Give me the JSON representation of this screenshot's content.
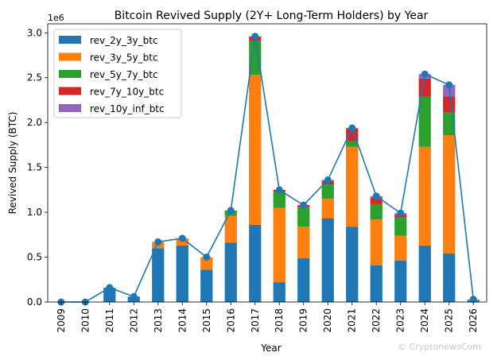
{
  "chart_data": {
    "type": "bar",
    "stacked": true,
    "title": "Bitcoin Revived Supply (2Y+ Long-Term Holders) by Year",
    "xlabel": "Year",
    "ylabel": "Revived Supply (BTC)",
    "y_offset_label": "1e6",
    "ylim": [
      0,
      3100000
    ],
    "yticks": [
      0,
      500000,
      1000000,
      1500000,
      2000000,
      2500000,
      3000000
    ],
    "ytick_labels": [
      "0.0",
      "0.5",
      "1.0",
      "1.5",
      "2.0",
      "2.5",
      "3.0"
    ],
    "grid": false,
    "legend_position": "top-left",
    "categories": [
      "2009",
      "2010",
      "2011",
      "2012",
      "2013",
      "2014",
      "2015",
      "2016",
      "2017",
      "2018",
      "2019",
      "2020",
      "2021",
      "2022",
      "2023",
      "2024",
      "2025",
      "2026"
    ],
    "series": [
      {
        "name": "rev_2y_3y_btc",
        "color": "#1f77b4",
        "values": [
          0,
          0,
          160000,
          60000,
          600000,
          630000,
          360000,
          660000,
          860000,
          220000,
          490000,
          930000,
          840000,
          410000,
          460000,
          630000,
          540000,
          20000
        ]
      },
      {
        "name": "rev_3y_5y_btc",
        "color": "#ff7f0e",
        "values": [
          0,
          0,
          0,
          0,
          70000,
          80000,
          140000,
          300000,
          1670000,
          830000,
          350000,
          220000,
          890000,
          510000,
          280000,
          1100000,
          1320000,
          10000
        ]
      },
      {
        "name": "rev_5y_7y_btc",
        "color": "#2ca02c",
        "values": [
          0,
          0,
          0,
          0,
          0,
          0,
          0,
          60000,
          380000,
          180000,
          216000,
          160000,
          60000,
          170000,
          200000,
          560000,
          250000,
          0
        ]
      },
      {
        "name": "rev_7y_10y_btc",
        "color": "#d62728",
        "values": [
          0,
          0,
          0,
          0,
          0,
          0,
          0,
          0,
          50000,
          20000,
          24000,
          40000,
          140000,
          70000,
          30000,
          200000,
          180000,
          0
        ]
      },
      {
        "name": "rev_10y_inf_btc",
        "color": "#9467bd",
        "values": [
          0,
          0,
          0,
          0,
          0,
          0,
          0,
          0,
          0,
          0,
          0,
          10000,
          10000,
          20000,
          20000,
          50000,
          130000,
          0
        ]
      }
    ],
    "total_line": {
      "color": "#1f77b4",
      "marker": "circle",
      "values": [
        0,
        0,
        160000,
        60000,
        670000,
        710000,
        500000,
        1020000,
        2960000,
        1250000,
        1080000,
        1360000,
        1940000,
        1180000,
        990000,
        2540000,
        2420000,
        30000
      ]
    }
  },
  "watermark": "© CryptonewsCom"
}
